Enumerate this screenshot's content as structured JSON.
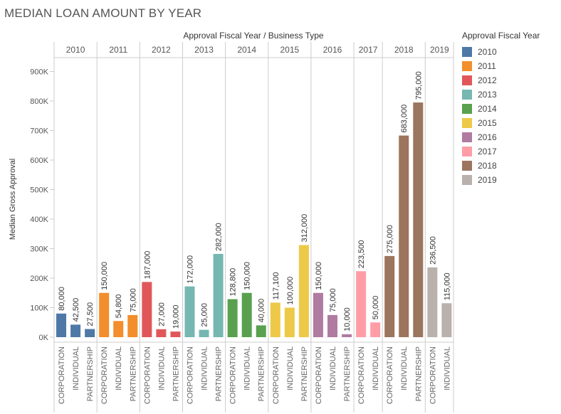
{
  "title": "MEDIAN LOAN AMOUNT BY YEAR",
  "chart_data": {
    "type": "bar",
    "column_header": "Approval Fiscal Year  /  Business Type",
    "ylabel": "Median Gross Approval",
    "ylim": [
      0,
      960000
    ],
    "yticks": [
      {
        "value": 0,
        "label": "0K"
      },
      {
        "value": 100000,
        "label": "100K"
      },
      {
        "value": 200000,
        "label": "200K"
      },
      {
        "value": 300000,
        "label": "300K"
      },
      {
        "value": 400000,
        "label": "400K"
      },
      {
        "value": 500000,
        "label": "500K"
      },
      {
        "value": 600000,
        "label": "600K"
      },
      {
        "value": 700000,
        "label": "700K"
      },
      {
        "value": 800000,
        "label": "800K"
      },
      {
        "value": 900000,
        "label": "900K"
      }
    ],
    "grid": false,
    "legend_position": "right",
    "groups": [
      {
        "year": "2010",
        "color": "#4e79a7",
        "bars": [
          {
            "category": "CORPORATION",
            "value": 80000,
            "label": "80,000"
          },
          {
            "category": "INDIVIDUAL",
            "value": 42500,
            "label": "42,500"
          },
          {
            "category": "PARTNERSHIP",
            "value": 27500,
            "label": "27,500"
          }
        ]
      },
      {
        "year": "2011",
        "color": "#f28e2b",
        "bars": [
          {
            "category": "CORPORATION",
            "value": 150000,
            "label": "150,000"
          },
          {
            "category": "INDIVIDUAL",
            "value": 54800,
            "label": "54,800"
          },
          {
            "category": "PARTNERSHIP",
            "value": 75000,
            "label": "75,000"
          }
        ]
      },
      {
        "year": "2012",
        "color": "#e15759",
        "bars": [
          {
            "category": "CORPORATION",
            "value": 187000,
            "label": "187,000"
          },
          {
            "category": "INDIVIDUAL",
            "value": 27000,
            "label": "27,000"
          },
          {
            "category": "PARTNERSHIP",
            "value": 19000,
            "label": "19,000"
          }
        ]
      },
      {
        "year": "2013",
        "color": "#76b7b2",
        "bars": [
          {
            "category": "CORPORATION",
            "value": 172000,
            "label": "172,000"
          },
          {
            "category": "INDIVIDUAL",
            "value": 25000,
            "label": "25,000"
          },
          {
            "category": "PARTNERSHIP",
            "value": 282000,
            "label": "282,000"
          }
        ]
      },
      {
        "year": "2014",
        "color": "#59a14f",
        "bars": [
          {
            "category": "CORPORATION",
            "value": 128800,
            "label": "128,800"
          },
          {
            "category": "INDIVIDUAL",
            "value": 150000,
            "label": "150,000"
          },
          {
            "category": "PARTNERSHIP",
            "value": 40000,
            "label": "40,000"
          }
        ]
      },
      {
        "year": "2015",
        "color": "#edc948",
        "bars": [
          {
            "category": "CORPORATION",
            "value": 117100,
            "label": "117,100"
          },
          {
            "category": "INDIVIDUAL",
            "value": 100000,
            "label": "100,000"
          },
          {
            "category": "PARTNERSHIP",
            "value": 312000,
            "label": "312,000"
          }
        ]
      },
      {
        "year": "2016",
        "color": "#b07aa1",
        "bars": [
          {
            "category": "CORPORATION",
            "value": 150000,
            "label": "150,000"
          },
          {
            "category": "INDIVIDUAL",
            "value": 75000,
            "label": "75,000"
          },
          {
            "category": "PARTNERSHIP",
            "value": 10000,
            "label": "10,000"
          }
        ]
      },
      {
        "year": "2017",
        "color": "#ff9da7",
        "bars": [
          {
            "category": "CORPORATION",
            "value": 223500,
            "label": "223,500"
          },
          {
            "category": "INDIVIDUAL",
            "value": 50000,
            "label": "50,000"
          }
        ]
      },
      {
        "year": "2018",
        "color": "#9c755f",
        "bars": [
          {
            "category": "CORPORATION",
            "value": 275000,
            "label": "275,000"
          },
          {
            "category": "INDIVIDUAL",
            "value": 683000,
            "label": "683,000"
          },
          {
            "category": "PARTNERSHIP",
            "value": 795000,
            "label": "795,000"
          }
        ]
      },
      {
        "year": "2019",
        "color": "#bab0ac",
        "bars": [
          {
            "category": "CORPORATION",
            "value": 236500,
            "label": "236,500"
          },
          {
            "category": "INDIVIDUAL",
            "value": 115000,
            "label": "115,000"
          }
        ]
      }
    ]
  },
  "legend": {
    "title": "Approval Fiscal Year",
    "items": [
      {
        "label": "2010",
        "color": "#4e79a7"
      },
      {
        "label": "2011",
        "color": "#f28e2b"
      },
      {
        "label": "2012",
        "color": "#e15759"
      },
      {
        "label": "2013",
        "color": "#76b7b2"
      },
      {
        "label": "2014",
        "color": "#59a14f"
      },
      {
        "label": "2015",
        "color": "#edc948"
      },
      {
        "label": "2016",
        "color": "#b07aa1"
      },
      {
        "label": "2017",
        "color": "#ff9da7"
      },
      {
        "label": "2018",
        "color": "#9c755f"
      },
      {
        "label": "2019",
        "color": "#bab0ac"
      }
    ]
  }
}
